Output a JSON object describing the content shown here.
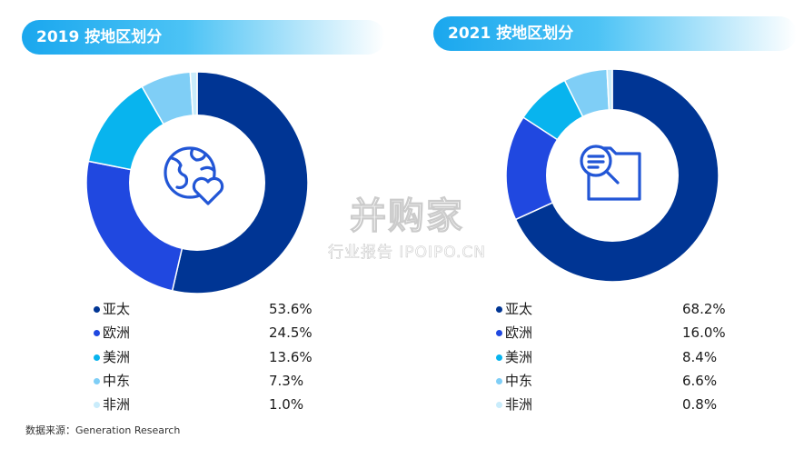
{
  "colors": {
    "asia_pacific": "#003594",
    "europe": "#2048e0",
    "americas": "#08b4ee",
    "middle_east": "#7fcef6",
    "africa": "#c9ecfb",
    "icon": "#2256d6"
  },
  "icons": {
    "left_center": "globe-heart-icon",
    "right_center": "search-folder-icon"
  },
  "chart_data": [
    {
      "type": "pie",
      "title": "2019 按地区划分",
      "categories": [
        "亚太",
        "欧洲",
        "美洲",
        "中东",
        "非洲"
      ],
      "values": [
        53.6,
        24.5,
        13.6,
        7.3,
        1.0
      ],
      "value_labels": [
        "53.6%",
        "24.5%",
        "13.6%",
        "7.3%",
        "1.0%"
      ],
      "donut": true
    },
    {
      "type": "pie",
      "title": "2021 按地区划分",
      "categories": [
        "亚太",
        "欧洲",
        "美洲",
        "中东",
        "非洲"
      ],
      "values": [
        68.2,
        16.0,
        8.4,
        6.6,
        0.8
      ],
      "value_labels": [
        "68.2%",
        "16.0%",
        "8.4%",
        "6.6%",
        "0.8%"
      ],
      "donut": true
    }
  ],
  "source": "数据来源：Generation Research",
  "watermark": {
    "main": "并购家",
    "sub": "行业报告 IPOIPO.CN"
  }
}
